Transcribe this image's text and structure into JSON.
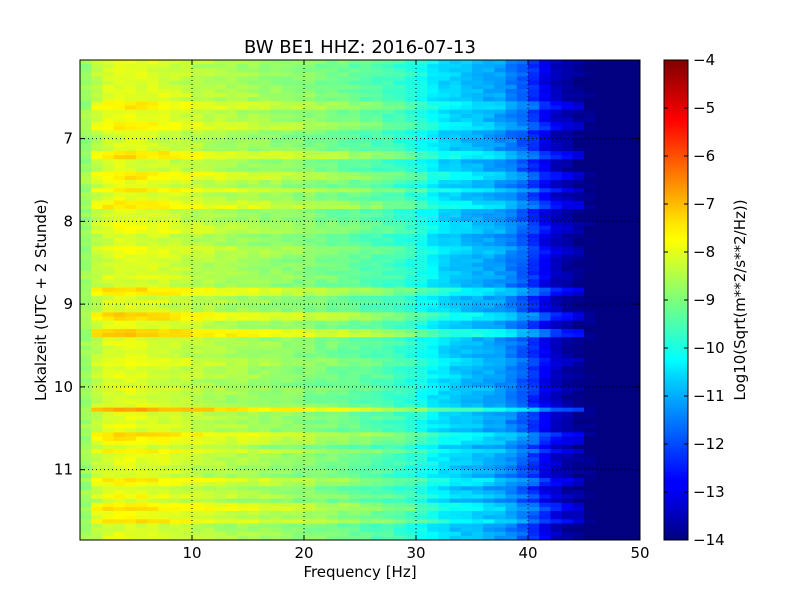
{
  "chart_data": [
    {
      "type": "heatmap",
      "title": "BW BE1 HHZ: 2016-07-13",
      "xlabel": "Frequency [Hz]",
      "ylabel": "Lokalzeit (UTC + 2 Stunde)",
      "xlim": [
        0,
        50
      ],
      "ylim": [
        11.85,
        6.05
      ],
      "x_ticks": [
        10,
        20,
        30,
        40,
        50
      ],
      "x_tick_labels": [
        "10",
        "20",
        "30",
        "40",
        "50"
      ],
      "y_ticks": [
        7,
        8,
        9,
        10,
        11
      ],
      "y_tick_labels": [
        "7",
        "8",
        "9",
        "10",
        "11"
      ],
      "grid": true,
      "colormap": "jet",
      "colorbar": {
        "label": "Log10(Sqrt(m**2/s**2/Hz))",
        "vmin": -14,
        "vmax": -4,
        "ticks": [
          -4,
          -5,
          -6,
          -7,
          -8,
          -9,
          -10,
          -11,
          -12,
          -13,
          -14
        ],
        "tick_labels": [
          "−4",
          "−5",
          "−6",
          "−7",
          "−8",
          "−9",
          "−10",
          "−11",
          "−12",
          "−13",
          "−14"
        ]
      },
      "spectral_profile": {
        "frequency_hz": [
          0,
          2,
          4,
          8,
          12,
          16,
          20,
          24,
          28,
          30,
          32,
          34,
          36,
          38,
          40,
          42,
          44,
          46,
          50
        ],
        "log10_amplitude": [
          -8.9,
          -8.2,
          -8.0,
          -8.2,
          -8.5,
          -8.7,
          -8.9,
          -9.2,
          -9.6,
          -9.9,
          -10.5,
          -10.8,
          -11.0,
          -11.3,
          -12.0,
          -13.2,
          -13.8,
          -14.0,
          -14.0
        ]
      },
      "bright_bands": [
        {
          "time": 6.6,
          "delta": 0.5
        },
        {
          "time": 6.85,
          "delta": 0.4
        },
        {
          "time": 7.2,
          "delta": 0.6
        },
        {
          "time": 7.45,
          "delta": 0.4
        },
        {
          "time": 7.62,
          "delta": 0.6
        },
        {
          "time": 7.8,
          "delta": 0.5
        },
        {
          "time": 8.1,
          "delta": 0.3
        },
        {
          "time": 8.35,
          "delta": 0.3
        },
        {
          "time": 8.85,
          "delta": 0.6
        },
        {
          "time": 9.15,
          "delta": 0.6
        },
        {
          "time": 9.35,
          "delta": 0.9
        },
        {
          "time": 9.7,
          "delta": 0.3
        },
        {
          "time": 10.27,
          "delta": 1.1
        },
        {
          "time": 10.6,
          "delta": 0.6
        },
        {
          "time": 10.68,
          "delta": 0.5
        },
        {
          "time": 10.78,
          "delta": 0.4
        },
        {
          "time": 11.15,
          "delta": 0.4
        },
        {
          "time": 11.33,
          "delta": 0.4
        },
        {
          "time": 11.45,
          "delta": 0.6
        },
        {
          "time": 11.55,
          "delta": 0.3
        },
        {
          "time": 11.63,
          "delta": 0.6
        }
      ]
    }
  ]
}
